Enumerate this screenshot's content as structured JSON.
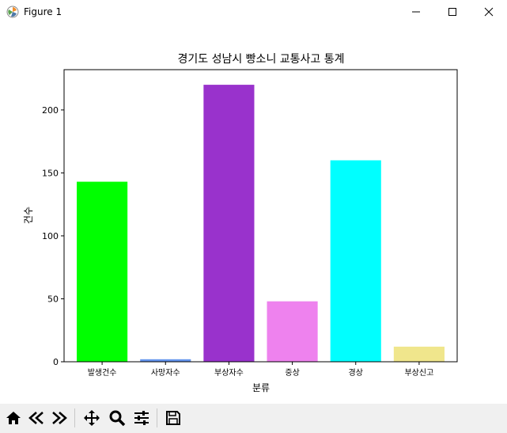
{
  "window": {
    "title": "Figure 1",
    "icons": [
      "matplotlib-icon",
      "minimize-icon",
      "maximize-icon",
      "close-icon"
    ]
  },
  "toolbar": {
    "buttons": [
      "home-icon",
      "back-icon",
      "forward-icon",
      "pan-icon",
      "zoom-icon",
      "configure-subplots-icon",
      "save-icon"
    ]
  },
  "chart_data": {
    "type": "bar",
    "title": "경기도 성남시 빵소니 교통사고 통계",
    "xlabel": "분류",
    "ylabel": "건수",
    "categories": [
      "발생건수",
      "사망자수",
      "부상자수",
      "중상",
      "경상",
      "부상신고"
    ],
    "values": [
      143,
      2,
      220,
      48,
      160,
      12
    ],
    "colors": [
      "#00ff00",
      "#6495ed",
      "#9932cc",
      "#ee82ee",
      "#00ffff",
      "#f0e68c"
    ],
    "ylim": [
      0,
      232
    ],
    "yticks": [
      0,
      50,
      100,
      150,
      200
    ],
    "grid": false
  }
}
